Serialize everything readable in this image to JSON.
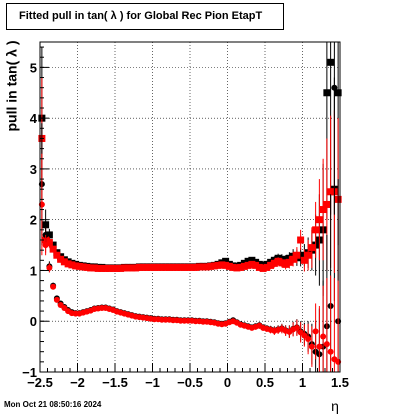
{
  "chart_data": {
    "type": "scatter",
    "title": "Fitted pull in tan( λ ) for Global Rec Pion EtapT",
    "xlabel": "η",
    "ylabel": "pull in tan( λ )",
    "xlim": [
      -2.5,
      1.5
    ],
    "ylim": [
      -1,
      5.5
    ],
    "xticks": [
      -2.5,
      -2,
      -1.5,
      -1,
      -0.5,
      0,
      0.5,
      1,
      1.5
    ],
    "xtick_labels": [
      "−2.5",
      "−2",
      "−1.5",
      "−1",
      "−0.5",
      "0",
      "0.5",
      "1",
      "1.5"
    ],
    "yticks": [
      -1,
      0,
      1,
      2,
      3,
      4,
      5
    ],
    "ytick_labels": [
      "−1",
      "0",
      "1",
      "2",
      "3",
      "4",
      "5"
    ],
    "grid": true,
    "series": [
      {
        "marker": "square",
        "color": "#000000",
        "x": [
          -2.475,
          -2.425,
          -2.375,
          -2.325,
          -2.275,
          -2.225,
          -2.175,
          -2.125,
          -2.075,
          -2.025,
          -1.975,
          -1.925,
          -1.875,
          -1.825,
          -1.775,
          -1.725,
          -1.675,
          -1.625,
          -1.575,
          -1.525,
          -1.475,
          -1.425,
          -1.375,
          -1.325,
          -1.275,
          -1.225,
          -1.175,
          -1.125,
          -1.075,
          -1.025,
          -0.975,
          -0.925,
          -0.875,
          -0.825,
          -0.775,
          -0.725,
          -0.675,
          -0.625,
          -0.575,
          -0.525,
          -0.475,
          -0.425,
          -0.375,
          -0.325,
          -0.275,
          -0.225,
          -0.175,
          -0.125,
          -0.075,
          -0.025,
          0.025,
          0.075,
          0.125,
          0.175,
          0.225,
          0.275,
          0.325,
          0.375,
          0.425,
          0.475,
          0.525,
          0.575,
          0.625,
          0.675,
          0.725,
          0.775,
          0.825,
          0.875,
          0.925,
          0.975,
          1.025,
          1.075,
          1.125,
          1.175,
          1.225,
          1.275,
          1.325,
          1.375,
          1.425,
          1.475
        ],
        "y": [
          4.0,
          1.9,
          1.7,
          1.5,
          1.35,
          1.27,
          1.21,
          1.17,
          1.14,
          1.12,
          1.1,
          1.09,
          1.08,
          1.07,
          1.07,
          1.06,
          1.06,
          1.05,
          1.05,
          1.05,
          1.05,
          1.05,
          1.06,
          1.06,
          1.06,
          1.06,
          1.07,
          1.07,
          1.07,
          1.07,
          1.07,
          1.07,
          1.07,
          1.07,
          1.07,
          1.07,
          1.07,
          1.07,
          1.07,
          1.07,
          1.07,
          1.07,
          1.08,
          1.08,
          1.08,
          1.09,
          1.1,
          1.12,
          1.15,
          1.18,
          1.12,
          1.09,
          1.08,
          1.1,
          1.14,
          1.18,
          1.2,
          1.16,
          1.12,
          1.1,
          1.12,
          1.16,
          1.2,
          1.24,
          1.22,
          1.2,
          1.24,
          1.28,
          1.25,
          1.26,
          1.3,
          1.35,
          1.4,
          1.5,
          1.6,
          1.8,
          4.5,
          5.1,
          2.6,
          4.5
        ],
        "yerr": [
          1.4,
          0.3,
          0.12,
          0.06,
          0.05,
          0.04,
          0.03,
          0.03,
          0.03,
          0.03,
          0.03,
          0.03,
          0.03,
          0.03,
          0.03,
          0.03,
          0.03,
          0.03,
          0.03,
          0.03,
          0.03,
          0.03,
          0.03,
          0.03,
          0.03,
          0.03,
          0.03,
          0.03,
          0.03,
          0.03,
          0.03,
          0.03,
          0.03,
          0.03,
          0.03,
          0.03,
          0.03,
          0.03,
          0.03,
          0.03,
          0.03,
          0.03,
          0.03,
          0.03,
          0.03,
          0.03,
          0.03,
          0.03,
          0.04,
          0.05,
          0.04,
          0.04,
          0.04,
          0.04,
          0.05,
          0.05,
          0.06,
          0.06,
          0.06,
          0.06,
          0.07,
          0.07,
          0.08,
          0.09,
          0.1,
          0.1,
          0.12,
          0.14,
          0.16,
          0.18,
          0.22,
          0.3,
          0.4,
          0.6,
          0.9,
          1.3,
          2.5,
          3.0,
          2.2,
          3.0
        ]
      },
      {
        "marker": "square",
        "color": "#ff0000",
        "x": [
          -2.475,
          -2.425,
          -2.375,
          -2.325,
          -2.275,
          -2.225,
          -2.175,
          -2.125,
          -2.075,
          -2.025,
          -1.975,
          -1.925,
          -1.875,
          -1.825,
          -1.775,
          -1.725,
          -1.675,
          -1.625,
          -1.575,
          -1.525,
          -1.475,
          -1.425,
          -1.375,
          -1.325,
          -1.275,
          -1.225,
          -1.175,
          -1.125,
          -1.075,
          -1.025,
          -0.975,
          -0.925,
          -0.875,
          -0.825,
          -0.775,
          -0.725,
          -0.675,
          -0.625,
          -0.575,
          -0.525,
          -0.475,
          -0.425,
          -0.375,
          -0.325,
          -0.275,
          -0.225,
          -0.175,
          -0.125,
          -0.075,
          -0.025,
          0.025,
          0.075,
          0.125,
          0.175,
          0.225,
          0.275,
          0.325,
          0.375,
          0.425,
          0.475,
          0.525,
          0.575,
          0.625,
          0.675,
          0.725,
          0.775,
          0.825,
          0.875,
          0.925,
          0.975,
          1.025,
          1.075,
          1.125,
          1.175,
          1.225,
          1.275,
          1.325,
          1.375,
          1.425,
          1.475
        ],
        "y": [
          3.6,
          1.6,
          1.55,
          1.42,
          1.3,
          1.22,
          1.17,
          1.13,
          1.11,
          1.09,
          1.08,
          1.07,
          1.06,
          1.05,
          1.05,
          1.04,
          1.04,
          1.04,
          1.04,
          1.04,
          1.04,
          1.04,
          1.05,
          1.05,
          1.05,
          1.05,
          1.06,
          1.06,
          1.06,
          1.06,
          1.06,
          1.06,
          1.06,
          1.06,
          1.06,
          1.06,
          1.06,
          1.06,
          1.06,
          1.06,
          1.06,
          1.06,
          1.07,
          1.07,
          1.07,
          1.08,
          1.09,
          1.1,
          1.11,
          1.1,
          1.08,
          1.06,
          1.05,
          1.06,
          1.08,
          1.1,
          1.12,
          1.1,
          1.06,
          1.04,
          1.06,
          1.1,
          1.14,
          1.18,
          1.15,
          1.12,
          1.16,
          1.22,
          1.3,
          1.6,
          1.2,
          1.3,
          1.45,
          1.8,
          2.0,
          2.2,
          2.3,
          2.55,
          2.55,
          2.4
        ],
        "yerr": [
          1.2,
          0.25,
          0.1,
          0.05,
          0.04,
          0.03,
          0.03,
          0.03,
          0.03,
          0.03,
          0.03,
          0.03,
          0.03,
          0.03,
          0.03,
          0.03,
          0.03,
          0.03,
          0.03,
          0.03,
          0.03,
          0.03,
          0.03,
          0.03,
          0.03,
          0.03,
          0.03,
          0.03,
          0.03,
          0.03,
          0.03,
          0.03,
          0.03,
          0.03,
          0.03,
          0.03,
          0.03,
          0.03,
          0.03,
          0.03,
          0.03,
          0.03,
          0.03,
          0.03,
          0.03,
          0.03,
          0.03,
          0.03,
          0.04,
          0.04,
          0.04,
          0.04,
          0.04,
          0.04,
          0.05,
          0.05,
          0.05,
          0.05,
          0.06,
          0.06,
          0.06,
          0.07,
          0.08,
          0.08,
          0.09,
          0.1,
          0.12,
          0.14,
          0.16,
          0.2,
          0.22,
          0.3,
          0.4,
          0.55,
          0.8,
          1.0,
          1.3,
          1.5,
          1.6,
          1.6
        ]
      },
      {
        "marker": "circle",
        "color": "#000000",
        "x": [
          -2.475,
          -2.425,
          -2.375,
          -2.325,
          -2.275,
          -2.225,
          -2.175,
          -2.125,
          -2.075,
          -2.025,
          -1.975,
          -1.925,
          -1.875,
          -1.825,
          -1.775,
          -1.725,
          -1.675,
          -1.625,
          -1.575,
          -1.525,
          -1.475,
          -1.425,
          -1.375,
          -1.325,
          -1.275,
          -1.225,
          -1.175,
          -1.125,
          -1.075,
          -1.025,
          -0.975,
          -0.925,
          -0.875,
          -0.825,
          -0.775,
          -0.725,
          -0.675,
          -0.625,
          -0.575,
          -0.525,
          -0.475,
          -0.425,
          -0.375,
          -0.325,
          -0.275,
          -0.225,
          -0.175,
          -0.125,
          -0.075,
          -0.025,
          0.025,
          0.075,
          0.125,
          0.175,
          0.225,
          0.275,
          0.325,
          0.375,
          0.425,
          0.475,
          0.525,
          0.575,
          0.625,
          0.675,
          0.725,
          0.775,
          0.825,
          0.875,
          0.925,
          0.975,
          1.025,
          1.075,
          1.125,
          1.175,
          1.225,
          1.275,
          1.325,
          1.375,
          1.425,
          1.475
        ],
        "y": [
          2.7,
          1.7,
          1.08,
          0.7,
          0.45,
          0.35,
          0.28,
          0.22,
          0.18,
          0.16,
          0.16,
          0.18,
          0.2,
          0.22,
          0.25,
          0.26,
          0.27,
          0.27,
          0.25,
          0.23,
          0.2,
          0.18,
          0.16,
          0.14,
          0.12,
          0.1,
          0.09,
          0.08,
          0.07,
          0.06,
          0.05,
          0.05,
          0.04,
          0.04,
          0.04,
          0.03,
          0.03,
          0.02,
          0.02,
          0.02,
          0.02,
          0.01,
          0.01,
          0.0,
          0.0,
          -0.01,
          -0.02,
          -0.04,
          -0.05,
          -0.04,
          -0.01,
          0.02,
          -0.02,
          -0.06,
          -0.08,
          -0.1,
          -0.12,
          -0.1,
          -0.08,
          -0.12,
          -0.14,
          -0.16,
          -0.18,
          -0.16,
          -0.14,
          -0.18,
          -0.2,
          -0.15,
          -0.12,
          -0.2,
          -0.25,
          -0.3,
          -0.45,
          -0.6,
          -0.65,
          -0.5,
          -0.1,
          0.3,
          4.6,
          0.0
        ],
        "yerr": [
          1.2,
          0.25,
          0.1,
          0.06,
          0.05,
          0.04,
          0.03,
          0.03,
          0.03,
          0.03,
          0.03,
          0.03,
          0.03,
          0.03,
          0.03,
          0.03,
          0.03,
          0.03,
          0.03,
          0.03,
          0.03,
          0.03,
          0.03,
          0.03,
          0.03,
          0.03,
          0.03,
          0.03,
          0.03,
          0.03,
          0.03,
          0.03,
          0.03,
          0.03,
          0.03,
          0.03,
          0.03,
          0.03,
          0.03,
          0.03,
          0.03,
          0.03,
          0.03,
          0.03,
          0.03,
          0.03,
          0.03,
          0.03,
          0.04,
          0.04,
          0.04,
          0.04,
          0.04,
          0.04,
          0.05,
          0.05,
          0.05,
          0.05,
          0.06,
          0.06,
          0.06,
          0.07,
          0.08,
          0.08,
          0.09,
          0.1,
          0.12,
          0.14,
          0.16,
          0.2,
          0.22,
          0.3,
          0.4,
          0.6,
          0.9,
          1.3,
          1.8,
          2.2,
          2.5,
          2.8
        ]
      },
      {
        "marker": "circle",
        "color": "#ff0000",
        "x": [
          -2.475,
          -2.425,
          -2.375,
          -2.325,
          -2.275,
          -2.225,
          -2.175,
          -2.125,
          -2.075,
          -2.025,
          -1.975,
          -1.925,
          -1.875,
          -1.825,
          -1.775,
          -1.725,
          -1.675,
          -1.625,
          -1.575,
          -1.525,
          -1.475,
          -1.425,
          -1.375,
          -1.325,
          -1.275,
          -1.225,
          -1.175,
          -1.125,
          -1.075,
          -1.025,
          -0.975,
          -0.925,
          -0.875,
          -0.825,
          -0.775,
          -0.725,
          -0.675,
          -0.625,
          -0.575,
          -0.525,
          -0.475,
          -0.425,
          -0.375,
          -0.325,
          -0.275,
          -0.225,
          -0.175,
          -0.125,
          -0.075,
          -0.025,
          0.025,
          0.075,
          0.125,
          0.175,
          0.225,
          0.275,
          0.325,
          0.375,
          0.425,
          0.475,
          0.525,
          0.575,
          0.625,
          0.675,
          0.725,
          0.775,
          0.825,
          0.875,
          0.925,
          0.975,
          1.025,
          1.075,
          1.125,
          1.175,
          1.225,
          1.275,
          1.325,
          1.375,
          1.425,
          1.475
        ],
        "y": [
          2.3,
          1.5,
          1.05,
          0.68,
          0.42,
          0.32,
          0.26,
          0.2,
          0.16,
          0.15,
          0.15,
          0.17,
          0.19,
          0.21,
          0.24,
          0.25,
          0.26,
          0.26,
          0.24,
          0.22,
          0.19,
          0.17,
          0.15,
          0.13,
          0.11,
          0.09,
          0.08,
          0.07,
          0.06,
          0.05,
          0.04,
          0.04,
          0.03,
          0.03,
          0.03,
          0.02,
          0.02,
          0.01,
          0.01,
          0.01,
          0.01,
          0.0,
          0.0,
          -0.01,
          -0.01,
          -0.02,
          -0.03,
          -0.05,
          -0.06,
          -0.05,
          -0.02,
          0.0,
          -0.03,
          -0.07,
          -0.09,
          -0.11,
          -0.13,
          -0.11,
          -0.09,
          -0.13,
          -0.15,
          -0.17,
          -0.19,
          -0.17,
          -0.15,
          -0.19,
          -0.21,
          -0.16,
          -0.13,
          -0.22,
          -0.28,
          -0.35,
          -0.5,
          -0.2,
          -0.5,
          -0.3,
          -0.45,
          -0.6,
          -0.75,
          -0.8
        ],
        "yerr": [
          1.0,
          0.2,
          0.09,
          0.05,
          0.04,
          0.03,
          0.03,
          0.03,
          0.03,
          0.03,
          0.03,
          0.03,
          0.03,
          0.03,
          0.03,
          0.03,
          0.03,
          0.03,
          0.03,
          0.03,
          0.03,
          0.03,
          0.03,
          0.03,
          0.03,
          0.03,
          0.03,
          0.03,
          0.03,
          0.03,
          0.03,
          0.03,
          0.03,
          0.03,
          0.03,
          0.03,
          0.03,
          0.03,
          0.03,
          0.03,
          0.03,
          0.03,
          0.03,
          0.03,
          0.03,
          0.03,
          0.03,
          0.03,
          0.04,
          0.04,
          0.04,
          0.04,
          0.04,
          0.04,
          0.05,
          0.05,
          0.05,
          0.05,
          0.06,
          0.06,
          0.06,
          0.07,
          0.08,
          0.08,
          0.09,
          0.1,
          0.12,
          0.14,
          0.16,
          0.2,
          0.22,
          0.3,
          0.4,
          0.55,
          0.8,
          1.0,
          1.3,
          1.5,
          1.6,
          1.6
        ]
      }
    ]
  },
  "footer": {
    "timestamp": "Mon Oct 21 08:50:16 2024"
  }
}
